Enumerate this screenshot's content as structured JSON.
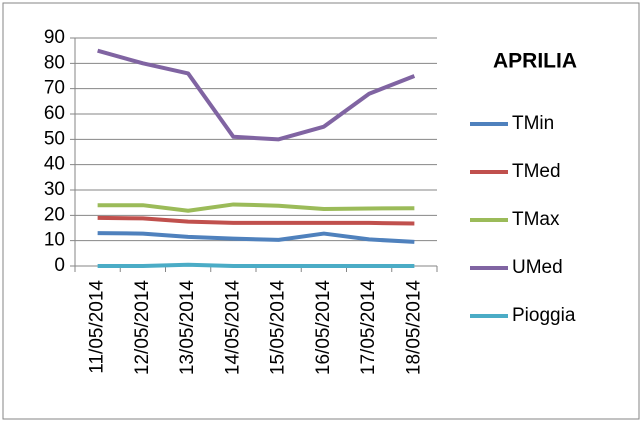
{
  "chart_data": {
    "type": "line",
    "title": "APRILIA",
    "categories": [
      "11/05/2014",
      "12/05/2014",
      "13/05/2014",
      "14/05/2014",
      "15/05/2014",
      "16/05/2014",
      "17/05/2014",
      "18/05/2014"
    ],
    "series": [
      {
        "name": "TMin",
        "color": "#4f81bd",
        "values": [
          13,
          12.8,
          11.5,
          10.8,
          10.3,
          12.8,
          10.5,
          9.5
        ]
      },
      {
        "name": "TMed",
        "color": "#c0504d",
        "values": [
          19,
          18.8,
          17.5,
          17,
          17,
          17,
          17,
          16.8
        ]
      },
      {
        "name": "TMax",
        "color": "#9bbb59",
        "values": [
          24,
          24,
          21.8,
          24.3,
          23.8,
          22.5,
          22.7,
          22.8
        ]
      },
      {
        "name": "UMed",
        "color": "#8064a2",
        "values": [
          85,
          80,
          76,
          51,
          50,
          55,
          68,
          75
        ]
      },
      {
        "name": "Pioggia",
        "color": "#4bacc6",
        "values": [
          0,
          0,
          0.5,
          0,
          0,
          0,
          0,
          0
        ]
      }
    ],
    "ylim": [
      0,
      90
    ],
    "yticks": [
      0,
      10,
      20,
      30,
      40,
      50,
      60,
      70,
      80,
      90
    ],
    "grid": true,
    "legend": "right"
  }
}
